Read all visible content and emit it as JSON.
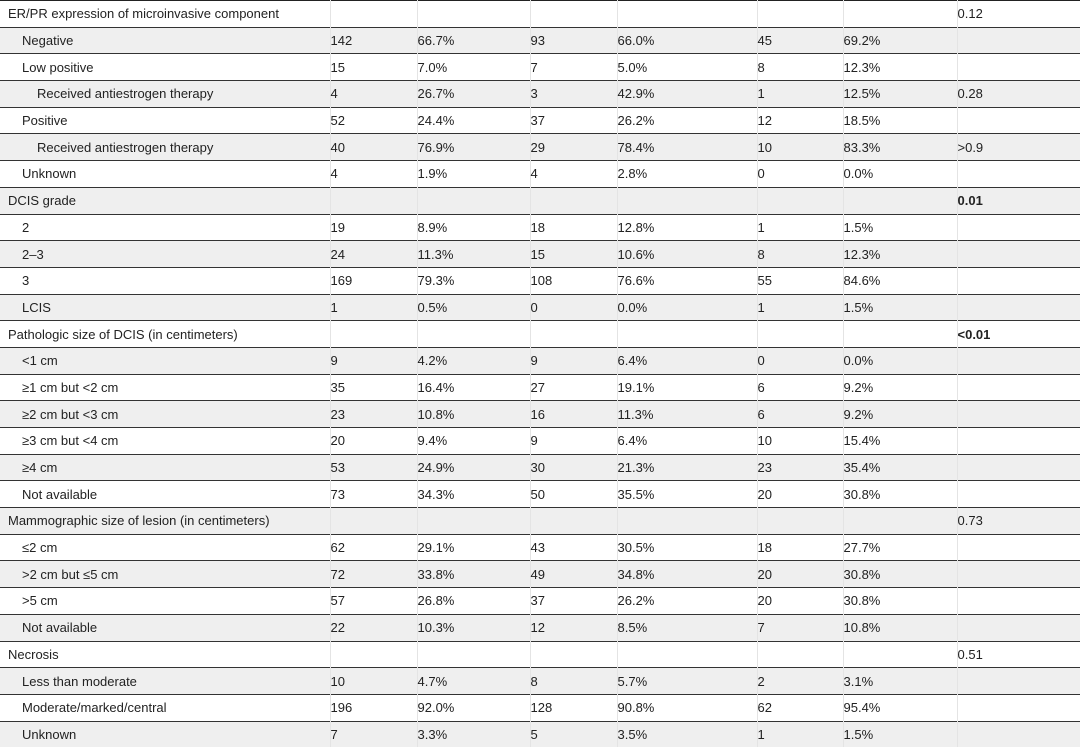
{
  "rows": [
    {
      "label": "ER/PR expression of microinvasive component",
      "level": 0,
      "v": [
        "",
        "",
        "",
        "",
        "",
        ""
      ],
      "p": "0.12",
      "bold": false
    },
    {
      "label": "Negative",
      "level": 1,
      "v": [
        "142",
        "66.7%",
        "93",
        "66.0%",
        "45",
        "69.2%"
      ],
      "p": ""
    },
    {
      "label": "Low positive",
      "level": 1,
      "v": [
        "15",
        "7.0%",
        "7",
        "5.0%",
        "8",
        "12.3%"
      ],
      "p": ""
    },
    {
      "label": "Received antiestrogen therapy",
      "level": 2,
      "v": [
        "4",
        "26.7%",
        "3",
        "42.9%",
        "1",
        "12.5%"
      ],
      "p": "0.28"
    },
    {
      "label": "Positive",
      "level": 1,
      "v": [
        "52",
        "24.4%",
        "37",
        "26.2%",
        "12",
        "18.5%"
      ],
      "p": ""
    },
    {
      "label": "Received antiestrogen therapy",
      "level": 2,
      "v": [
        "40",
        "76.9%",
        "29",
        "78.4%",
        "10",
        "83.3%"
      ],
      "p": ">0.9"
    },
    {
      "label": "Unknown",
      "level": 1,
      "v": [
        "4",
        "1.9%",
        "4",
        "2.8%",
        "0",
        "0.0%"
      ],
      "p": ""
    },
    {
      "label": "DCIS grade",
      "level": 0,
      "v": [
        "",
        "",
        "",
        "",
        "",
        ""
      ],
      "p": "0.01",
      "bold": true
    },
    {
      "label": "2",
      "level": 1,
      "v": [
        "19",
        "8.9%",
        "18",
        "12.8%",
        "1",
        "1.5%"
      ],
      "p": ""
    },
    {
      "label": "2–3",
      "level": 1,
      "v": [
        "24",
        "11.3%",
        "15",
        "10.6%",
        "8",
        "12.3%"
      ],
      "p": ""
    },
    {
      "label": "3",
      "level": 1,
      "v": [
        "169",
        "79.3%",
        "108",
        "76.6%",
        "55",
        "84.6%"
      ],
      "p": ""
    },
    {
      "label": "LCIS",
      "level": 1,
      "v": [
        "1",
        "0.5%",
        "0",
        "0.0%",
        "1",
        "1.5%"
      ],
      "p": ""
    },
    {
      "label": "Pathologic size of DCIS (in centimeters)",
      "level": 0,
      "v": [
        "",
        "",
        "",
        "",
        "",
        ""
      ],
      "p": "<0.01",
      "bold": true
    },
    {
      "label": "<1 cm",
      "level": 1,
      "v": [
        "9",
        "4.2%",
        "9",
        "6.4%",
        "0",
        "0.0%"
      ],
      "p": ""
    },
    {
      "label": "≥1 cm but <2 cm",
      "level": 1,
      "v": [
        "35",
        "16.4%",
        "27",
        "19.1%",
        "6",
        "9.2%"
      ],
      "p": ""
    },
    {
      "label": "≥2 cm but <3 cm",
      "level": 1,
      "v": [
        "23",
        "10.8%",
        "16",
        "11.3%",
        "6",
        "9.2%"
      ],
      "p": ""
    },
    {
      "label": "≥3 cm but <4 cm",
      "level": 1,
      "v": [
        "20",
        "9.4%",
        "9",
        "6.4%",
        "10",
        "15.4%"
      ],
      "p": ""
    },
    {
      "label": "≥4 cm",
      "level": 1,
      "v": [
        "53",
        "24.9%",
        "30",
        "21.3%",
        "23",
        "35.4%"
      ],
      "p": ""
    },
    {
      "label": "Not available",
      "level": 1,
      "v": [
        "73",
        "34.3%",
        "50",
        "35.5%",
        "20",
        "30.8%"
      ],
      "p": ""
    },
    {
      "label": "Mammographic size of lesion (in centimeters)",
      "level": 0,
      "v": [
        "",
        "",
        "",
        "",
        "",
        ""
      ],
      "p": "0.73"
    },
    {
      "label": "≤2 cm",
      "level": 1,
      "v": [
        "62",
        "29.1%",
        "43",
        "30.5%",
        "18",
        "27.7%"
      ],
      "p": ""
    },
    {
      "label": ">2 cm but ≤5 cm",
      "level": 1,
      "v": [
        "72",
        "33.8%",
        "49",
        "34.8%",
        "20",
        "30.8%"
      ],
      "p": ""
    },
    {
      "label": ">5 cm",
      "level": 1,
      "v": [
        "57",
        "26.8%",
        "37",
        "26.2%",
        "20",
        "30.8%"
      ],
      "p": ""
    },
    {
      "label": "Not available",
      "level": 1,
      "v": [
        "22",
        "10.3%",
        "12",
        "8.5%",
        "7",
        "10.8%"
      ],
      "p": ""
    },
    {
      "label": "Necrosis",
      "level": 0,
      "v": [
        "",
        "",
        "",
        "",
        "",
        ""
      ],
      "p": "0.51"
    },
    {
      "label": "Less than moderate",
      "level": 1,
      "v": [
        "10",
        "4.7%",
        "8",
        "5.7%",
        "2",
        "3.1%"
      ],
      "p": ""
    },
    {
      "label": "Moderate/marked/central",
      "level": 1,
      "v": [
        "196",
        "92.0%",
        "128",
        "90.8%",
        "62",
        "95.4%"
      ],
      "p": ""
    },
    {
      "label": "Unknown",
      "level": 1,
      "v": [
        "7",
        "3.3%",
        "5",
        "3.5%",
        "1",
        "1.5%"
      ],
      "p": ""
    }
  ]
}
